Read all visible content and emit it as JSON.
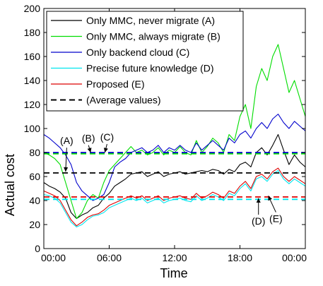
{
  "chart_data": {
    "type": "line",
    "xlabel": "Time",
    "ylabel": "Actual cost",
    "xticks": [
      "00:00",
      "06:00",
      "12:00",
      "18:00",
      "00:00"
    ],
    "xlim": [
      0,
      24
    ],
    "ylim": [
      0,
      200
    ],
    "yticks": [
      0,
      20,
      40,
      60,
      80,
      100,
      120,
      140,
      160,
      180,
      200
    ],
    "x_unit": "hours",
    "legend_position": "top-left",
    "series": [
      {
        "name": "Only MMC, never migrate (A)",
        "color": "#000000",
        "x": [
          0,
          0.5,
          1,
          1.5,
          2,
          2.5,
          3,
          3.5,
          4,
          4.5,
          5,
          5.5,
          6,
          6.5,
          7,
          7.5,
          8,
          8.5,
          9,
          9.5,
          10,
          10.5,
          11,
          11.5,
          12,
          12.5,
          13,
          13.5,
          14,
          14.5,
          15,
          15.5,
          16,
          16.5,
          17,
          17.5,
          18,
          18.5,
          19,
          19.5,
          20,
          20.5,
          21,
          21.5,
          22,
          22.5,
          23,
          23.5,
          24
        ],
        "values": [
          55,
          52,
          50,
          47,
          42,
          30,
          25,
          28,
          30,
          34,
          36,
          42,
          46,
          52,
          55,
          58,
          62,
          63,
          64,
          60,
          62,
          64,
          60,
          62,
          63,
          64,
          62,
          63,
          64,
          65,
          64,
          66,
          65,
          62,
          66,
          64,
          70,
          72,
          68,
          80,
          84,
          78,
          86,
          95,
          82,
          70,
          78,
          72,
          68
        ]
      },
      {
        "name": "Only MMC, always migrate (B)",
        "color": "#00dd00",
        "x": [
          0,
          0.5,
          1,
          1.5,
          2,
          2.5,
          3,
          3.5,
          4,
          4.5,
          5,
          5.5,
          6,
          6.5,
          7,
          7.5,
          8,
          8.5,
          9,
          9.5,
          10,
          10.5,
          11,
          11.5,
          12,
          12.5,
          13,
          13.5,
          14,
          14.5,
          15,
          15.5,
          16,
          16.5,
          17,
          17.5,
          18,
          18.5,
          19,
          19.5,
          20,
          20.5,
          21,
          21.5,
          22,
          22.5,
          23,
          23.5,
          24
        ],
        "values": [
          80,
          78,
          75,
          70,
          55,
          40,
          25,
          30,
          40,
          45,
          42,
          55,
          65,
          70,
          75,
          80,
          85,
          80,
          82,
          78,
          80,
          84,
          78,
          82,
          80,
          85,
          80,
          78,
          90,
          80,
          85,
          92,
          88,
          80,
          95,
          90,
          110,
          120,
          100,
          135,
          150,
          140,
          160,
          170,
          150,
          130,
          140,
          125,
          110
        ]
      },
      {
        "name": "Only backend cloud (C)",
        "color": "#0000cc",
        "x": [
          0,
          0.5,
          1,
          1.5,
          2,
          2.5,
          3,
          3.5,
          4,
          4.5,
          5,
          5.5,
          6,
          6.5,
          7,
          7.5,
          8,
          8.5,
          9,
          9.5,
          10,
          10.5,
          11,
          11.5,
          12,
          12.5,
          13,
          13.5,
          14,
          14.5,
          15,
          15.5,
          16,
          16.5,
          17,
          17.5,
          18,
          18.5,
          19,
          19.5,
          20,
          20.5,
          21,
          21.5,
          22,
          22.5,
          23,
          23.5,
          24
        ],
        "values": [
          95,
          92,
          88,
          84,
          78,
          70,
          55,
          48,
          44,
          40,
          42,
          45,
          55,
          68,
          72,
          75,
          80,
          82,
          84,
          80,
          82,
          86,
          80,
          84,
          82,
          86,
          82,
          80,
          88,
          82,
          86,
          90,
          86,
          82,
          92,
          88,
          95,
          98,
          92,
          100,
          105,
          100,
          108,
          112,
          105,
          100,
          106,
          102,
          98
        ]
      },
      {
        "name": "Precise future knowledge (D)",
        "color": "#00e5ee",
        "x": [
          0,
          0.5,
          1,
          1.5,
          2,
          2.5,
          3,
          3.5,
          4,
          4.5,
          5,
          5.5,
          6,
          6.5,
          7,
          7.5,
          8,
          8.5,
          9,
          9.5,
          10,
          10.5,
          11,
          11.5,
          12,
          12.5,
          13,
          13.5,
          14,
          14.5,
          15,
          15.5,
          16,
          16.5,
          17,
          17.5,
          18,
          18.5,
          19,
          19.5,
          20,
          20.5,
          21,
          21.5,
          22,
          22.5,
          23,
          23.5,
          24
        ],
        "values": [
          45,
          44,
          42,
          38,
          30,
          22,
          18,
          20,
          24,
          27,
          28,
          30,
          34,
          36,
          38,
          40,
          42,
          40,
          42,
          38,
          40,
          42,
          38,
          40,
          41,
          42,
          40,
          39,
          44,
          40,
          42,
          45,
          43,
          40,
          46,
          44,
          50,
          54,
          48,
          58,
          60,
          56,
          62,
          65,
          58,
          54,
          58,
          55,
          52
        ]
      },
      {
        "name": "Proposed (E)",
        "color": "#dd0000",
        "x": [
          0,
          0.5,
          1,
          1.5,
          2,
          2.5,
          3,
          3.5,
          4,
          4.5,
          5,
          5.5,
          6,
          6.5,
          7,
          7.5,
          8,
          8.5,
          9,
          9.5,
          10,
          10.5,
          11,
          11.5,
          12,
          12.5,
          13,
          13.5,
          14,
          14.5,
          15,
          15.5,
          16,
          16.5,
          17,
          17.5,
          18,
          18.5,
          19,
          19.5,
          20,
          20.5,
          21,
          21.5,
          22,
          22.5,
          23,
          23.5,
          24
        ],
        "values": [
          48,
          46,
          44,
          40,
          32,
          24,
          19,
          22,
          26,
          28,
          29,
          32,
          36,
          38,
          40,
          42,
          44,
          42,
          44,
          40,
          42,
          44,
          40,
          42,
          43,
          44,
          42,
          41,
          46,
          42,
          44,
          47,
          45,
          42,
          48,
          46,
          52,
          56,
          50,
          60,
          62,
          58,
          64,
          67,
          60,
          56,
          60,
          57,
          54
        ]
      }
    ],
    "average_lines": [
      {
        "label": "(A)",
        "color": "#000000",
        "value": 63
      },
      {
        "label": "(B)",
        "color": "#00dd00",
        "value": 79
      },
      {
        "label": "(C)",
        "color": "#0000cc",
        "value": 80
      },
      {
        "label": "(D)",
        "color": "#00e5ee",
        "value": 41
      },
      {
        "label": "(E)",
        "color": "#dd0000",
        "value": 43
      }
    ],
    "legend_extra": {
      "name": "(Average values)",
      "color": "#000000",
      "dash": true
    },
    "annotations": [
      {
        "label": "(A)",
        "text_x": 2.1,
        "text_y": 87,
        "point_x": 2.0,
        "point_y": 64
      },
      {
        "label": "(B)",
        "text_x": 4.1,
        "text_y": 89,
        "point_x": 4.3,
        "point_y": 80
      },
      {
        "label": "(C)",
        "text_x": 5.8,
        "text_y": 90,
        "point_x": 5.6,
        "point_y": 80
      },
      {
        "label": "(D)",
        "text_x": 19.7,
        "text_y": 20,
        "point_x": 19.7,
        "point_y": 42
      },
      {
        "label": "(E)",
        "text_x": 21.3,
        "text_y": 22,
        "point_x": 20.6,
        "point_y": 44
      }
    ]
  }
}
